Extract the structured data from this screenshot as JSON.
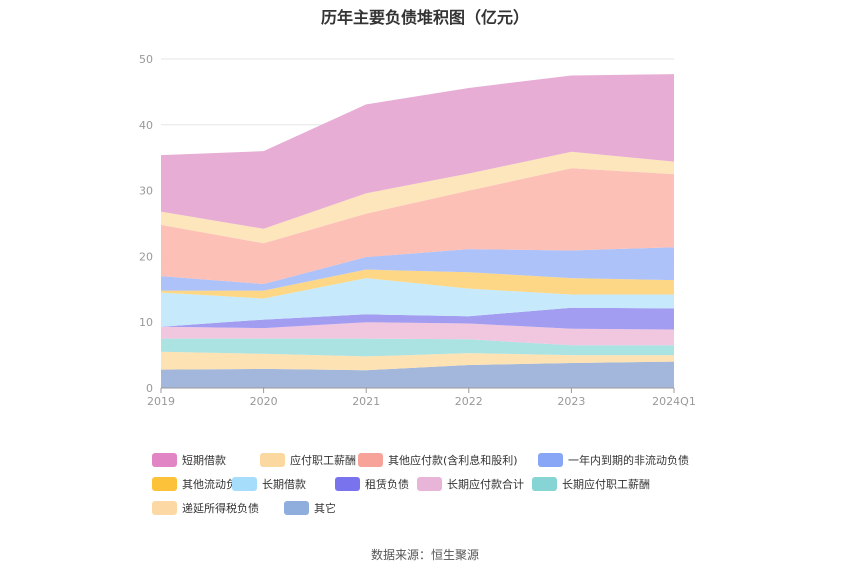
{
  "chart_data": {
    "type": "area",
    "stacked": true,
    "title": "历年主要负债堆积图（亿元）",
    "categories": [
      "2019",
      "2020",
      "2021",
      "2022",
      "2023",
      "2024Q1"
    ],
    "ylim": [
      0,
      50
    ],
    "yticks": [
      0,
      10,
      20,
      30,
      40,
      50
    ],
    "grid": true,
    "legend_position": "bottom",
    "series": [
      {
        "name": "其它",
        "color": "#9db3d9",
        "values": [
          2.8,
          2.9,
          2.7,
          3.5,
          3.8,
          4.0
        ]
      },
      {
        "name": "递延所得税负债",
        "color": "#fde0b0",
        "values": [
          2.7,
          2.3,
          2.1,
          1.8,
          1.2,
          1.0
        ]
      },
      {
        "name": "长期应付职工薪酬",
        "color": "#a6e0e0",
        "values": [
          2.0,
          2.3,
          2.7,
          2.1,
          1.5,
          1.5
        ]
      },
      {
        "name": "长期应付款合计",
        "color": "#f0c4de",
        "values": [
          1.8,
          1.6,
          2.5,
          2.4,
          2.5,
          2.4
        ]
      },
      {
        "name": "租赁负债",
        "color": "#9e98f0",
        "values": [
          0.0,
          1.3,
          1.2,
          1.1,
          3.2,
          3.2
        ]
      },
      {
        "name": "长期借款",
        "color": "#c3e9fb",
        "values": [
          5.2,
          3.2,
          5.5,
          4.2,
          2.0,
          2.1
        ]
      },
      {
        "name": "其他流动负债",
        "color": "#fdd57e",
        "values": [
          0.3,
          1.2,
          1.3,
          2.5,
          2.5,
          2.2
        ]
      },
      {
        "name": "一年内到期的非流动负债",
        "color": "#a9bff8",
        "values": [
          2.2,
          1.0,
          1.9,
          3.5,
          4.2,
          5.0
        ]
      },
      {
        "name": "其他应付款(含利息和股利)",
        "color": "#fdbdb3",
        "values": [
          7.8,
          6.2,
          6.6,
          8.9,
          12.5,
          11.1
        ]
      },
      {
        "name": "应付职工薪酬",
        "color": "#fde4b8",
        "values": [
          2.0,
          2.2,
          3.1,
          2.6,
          2.5,
          1.9
        ]
      },
      {
        "name": "短期借款",
        "color": "#e6a9d2",
        "values": [
          8.6,
          11.8,
          13.5,
          13.0,
          11.6,
          13.3
        ]
      }
    ]
  },
  "legend": [
    {
      "name": "短期借款",
      "color": "#e285c4"
    },
    {
      "name": "应付职工薪酬",
      "color": "#fbd8a0"
    },
    {
      "name": "其他应付款(含利息和股利)",
      "color": "#f7a399"
    },
    {
      "name": "一年内到期的非流动负债",
      "color": "#88a6f5"
    },
    {
      "name": "其他流动负债",
      "color": "#fbc23a"
    },
    {
      "name": "长期借款",
      "color": "#a6ddfb"
    },
    {
      "name": "租赁负债",
      "color": "#7a73ee"
    },
    {
      "name": "长期应付款合计",
      "color": "#e8b4d8"
    },
    {
      "name": "长期应付职工薪酬",
      "color": "#86d4d4"
    },
    {
      "name": "递延所得税负债",
      "color": "#fcd9a4"
    },
    {
      "name": "其它",
      "color": "#90aedd"
    }
  ],
  "source": "数据来源：恒生聚源"
}
